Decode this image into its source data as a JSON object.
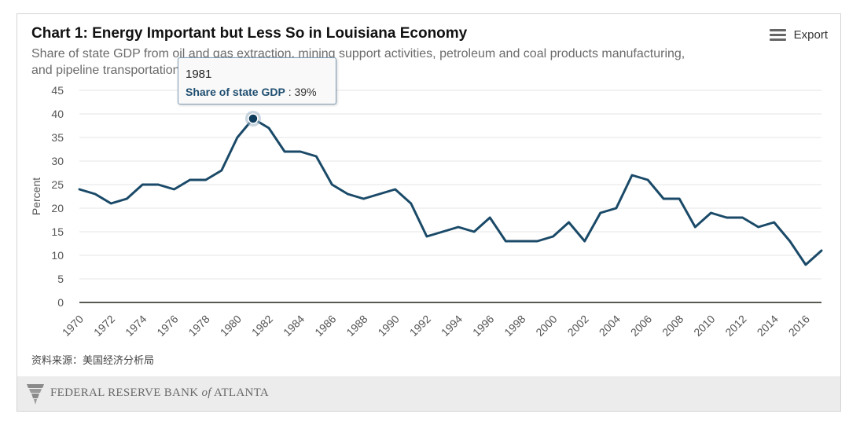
{
  "header": {
    "title": "Chart 1: Energy Important but Less So in Louisiana Economy",
    "subtitle": "Share of state GDP from oil and gas extraction, mining support activities, petroleum and coal products manufacturing, and pipeline transportation",
    "export_label": "Export"
  },
  "tooltip": {
    "year": "1981",
    "series_label": "Share of state GDP",
    "separator": " : ",
    "value_text": "39%"
  },
  "source": "资料来源：美国经济分析局",
  "footer": {
    "org_part1": "FEDERAL RESERVE BANK ",
    "org_of": "of",
    "org_part2": " ATLANTA"
  },
  "colors": {
    "line": "#1a4a68",
    "grid": "#e6e6e6",
    "axis": "#555555",
    "highlight": "#0d3c5c"
  },
  "chart_data": {
    "type": "line",
    "title": "Chart 1: Energy Important but Less So in Louisiana Economy",
    "xlabel": "",
    "ylabel": "Percent",
    "ylim": [
      0,
      45
    ],
    "yticks": [
      "0",
      "5",
      "10",
      "15",
      "20",
      "25",
      "30",
      "35",
      "40",
      "45"
    ],
    "xticks": [
      "1970",
      "1972",
      "1974",
      "1976",
      "1978",
      "1980",
      "1982",
      "1984",
      "1986",
      "1988",
      "1990",
      "1992",
      "1994",
      "1996",
      "1998",
      "2000",
      "2002",
      "2004",
      "2006",
      "2008",
      "2010",
      "2012",
      "2014",
      "2016"
    ],
    "grid": true,
    "highlight_year": 1981,
    "series": [
      {
        "name": "Share of state GDP",
        "x": [
          1970,
          1971,
          1972,
          1973,
          1974,
          1975,
          1976,
          1977,
          1978,
          1979,
          1980,
          1981,
          1982,
          1983,
          1984,
          1985,
          1986,
          1987,
          1988,
          1989,
          1990,
          1991,
          1992,
          1993,
          1994,
          1995,
          1996,
          1997,
          1998,
          1999,
          2000,
          2001,
          2002,
          2003,
          2004,
          2005,
          2006,
          2007,
          2008,
          2009,
          2010,
          2011,
          2012,
          2013,
          2014,
          2015,
          2016,
          2017
        ],
        "values": [
          24,
          23,
          21,
          22,
          25,
          25,
          24,
          26,
          26,
          28,
          35,
          39,
          37,
          32,
          32,
          31,
          25,
          23,
          22,
          23,
          24,
          21,
          14,
          15,
          16,
          15,
          18,
          13,
          13,
          13,
          14,
          17,
          13,
          19,
          20,
          27,
          26,
          22,
          22,
          16,
          19,
          18,
          18,
          16,
          17,
          13,
          8,
          11
        ]
      }
    ]
  }
}
